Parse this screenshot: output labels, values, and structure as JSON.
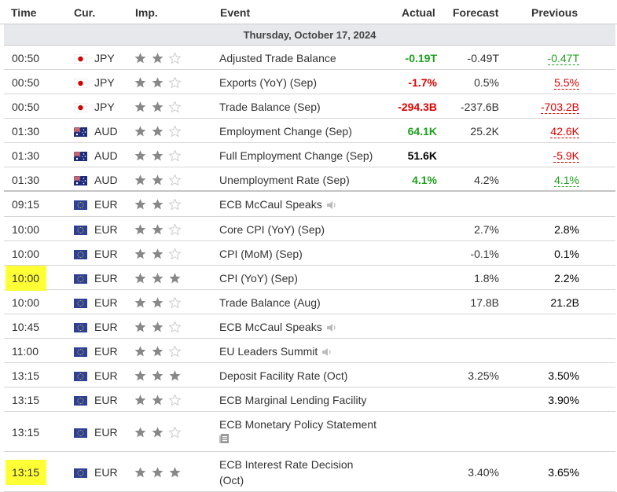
{
  "header": {
    "time": "Time",
    "cur": "Cur.",
    "imp": "Imp.",
    "event": "Event",
    "actual": "Actual",
    "forecast": "Forecast",
    "previous": "Previous"
  },
  "day_label": "Thursday, October 17, 2024",
  "colors": {
    "positive": "#1da01d",
    "negative": "#e00000",
    "highlight": "#ffff35",
    "star_filled": "#888888",
    "star_empty": "#cccccc"
  },
  "rows": [
    {
      "time": "00:50",
      "flag": "jp-flag",
      "cur": "JPY",
      "imp": 2,
      "event": "Adjusted Trade Balance",
      "actual": "-0.19T",
      "actual_tone": "pos",
      "forecast": "-0.49T",
      "previous": "-0.47T",
      "previous_tone": "green"
    },
    {
      "time": "00:50",
      "flag": "jp-flag",
      "cur": "JPY",
      "imp": 2,
      "event": "Exports (YoY) (Sep)",
      "actual": "-1.7%",
      "actual_tone": "neg",
      "forecast": "0.5%",
      "previous": "5.5%",
      "previous_tone": "red"
    },
    {
      "time": "00:50",
      "flag": "jp-flag",
      "cur": "JPY",
      "imp": 2,
      "event": "Trade Balance (Sep)",
      "actual": "-294.3B",
      "actual_tone": "neg",
      "forecast": "-237.6B",
      "previous": "-703.2B",
      "previous_tone": "red"
    },
    {
      "time": "01:30",
      "flag": "au-flag",
      "cur": "AUD",
      "imp": 2,
      "event": "Employment Change (Sep)",
      "actual": "64.1K",
      "actual_tone": "pos",
      "forecast": "25.2K",
      "previous": "42.6K",
      "previous_tone": "red"
    },
    {
      "time": "01:30",
      "flag": "au-flag",
      "cur": "AUD",
      "imp": 2,
      "event": "Full Employment Change (Sep)",
      "actual": "51.6K",
      "actual_tone": "neu",
      "forecast": "",
      "previous": "-5.9K",
      "previous_tone": "red"
    },
    {
      "time": "01:30",
      "flag": "au-flag",
      "cur": "AUD",
      "imp": 2,
      "event": "Unemployment Rate (Sep)",
      "actual": "4.1%",
      "actual_tone": "pos",
      "forecast": "4.2%",
      "previous": "4.1%",
      "previous_tone": "green"
    },
    {
      "time": "09:15",
      "flag": "eu-flag",
      "cur": "EUR",
      "imp": 2,
      "event": "ECB McCaul Speaks",
      "actual": "",
      "forecast": "",
      "previous": "",
      "icon": "speaker-icon"
    },
    {
      "time": "10:00",
      "flag": "eu-flag",
      "cur": "EUR",
      "imp": 2,
      "event": "Core CPI (YoY) (Sep)",
      "actual": "",
      "forecast": "2.7%",
      "previous": "2.8%",
      "previous_tone": "plain"
    },
    {
      "time": "10:00",
      "flag": "eu-flag",
      "cur": "EUR",
      "imp": 2,
      "event": "CPI (MoM) (Sep)",
      "actual": "",
      "forecast": "-0.1%",
      "previous": "0.1%",
      "previous_tone": "plain"
    },
    {
      "time": "10:00",
      "flag": "eu-flag",
      "cur": "EUR",
      "imp": 3,
      "event": "CPI (YoY) (Sep)",
      "actual": "",
      "forecast": "1.8%",
      "previous": "2.2%",
      "previous_tone": "plain",
      "highlight": true
    },
    {
      "time": "10:00",
      "flag": "eu-flag",
      "cur": "EUR",
      "imp": 2,
      "event": "Trade Balance (Aug)",
      "actual": "",
      "forecast": "17.8B",
      "previous": "21.2B",
      "previous_tone": "plain"
    },
    {
      "time": "10:45",
      "flag": "eu-flag",
      "cur": "EUR",
      "imp": 2,
      "event": "ECB McCaul Speaks",
      "actual": "",
      "forecast": "",
      "previous": "",
      "icon": "speaker-icon"
    },
    {
      "time": "11:00",
      "flag": "eu-flag",
      "cur": "EUR",
      "imp": 2,
      "event": "EU Leaders Summit",
      "actual": "",
      "forecast": "",
      "previous": "",
      "icon": "speaker-icon"
    },
    {
      "time": "13:15",
      "flag": "eu-flag",
      "cur": "EUR",
      "imp": 3,
      "event": "Deposit Facility Rate (Oct)",
      "actual": "",
      "forecast": "3.25%",
      "previous": "3.50%",
      "previous_tone": "plain"
    },
    {
      "time": "13:15",
      "flag": "eu-flag",
      "cur": "EUR",
      "imp": 2,
      "event": "ECB Marginal Lending Facility",
      "actual": "",
      "forecast": "",
      "previous": "3.90%",
      "previous_tone": "plain"
    },
    {
      "time": "13:15",
      "flag": "eu-flag",
      "cur": "EUR",
      "imp": 2,
      "event": "ECB Monetary Policy Statement",
      "actual": "",
      "forecast": "",
      "previous": "",
      "icon": "document-icon"
    },
    {
      "time": "13:15",
      "flag": "eu-flag",
      "cur": "EUR",
      "imp": 3,
      "event": "ECB Interest Rate Decision",
      "event2": "(Oct)",
      "actual": "",
      "forecast": "3.40%",
      "previous": "3.65%",
      "previous_tone": "plain",
      "highlight": true
    }
  ]
}
